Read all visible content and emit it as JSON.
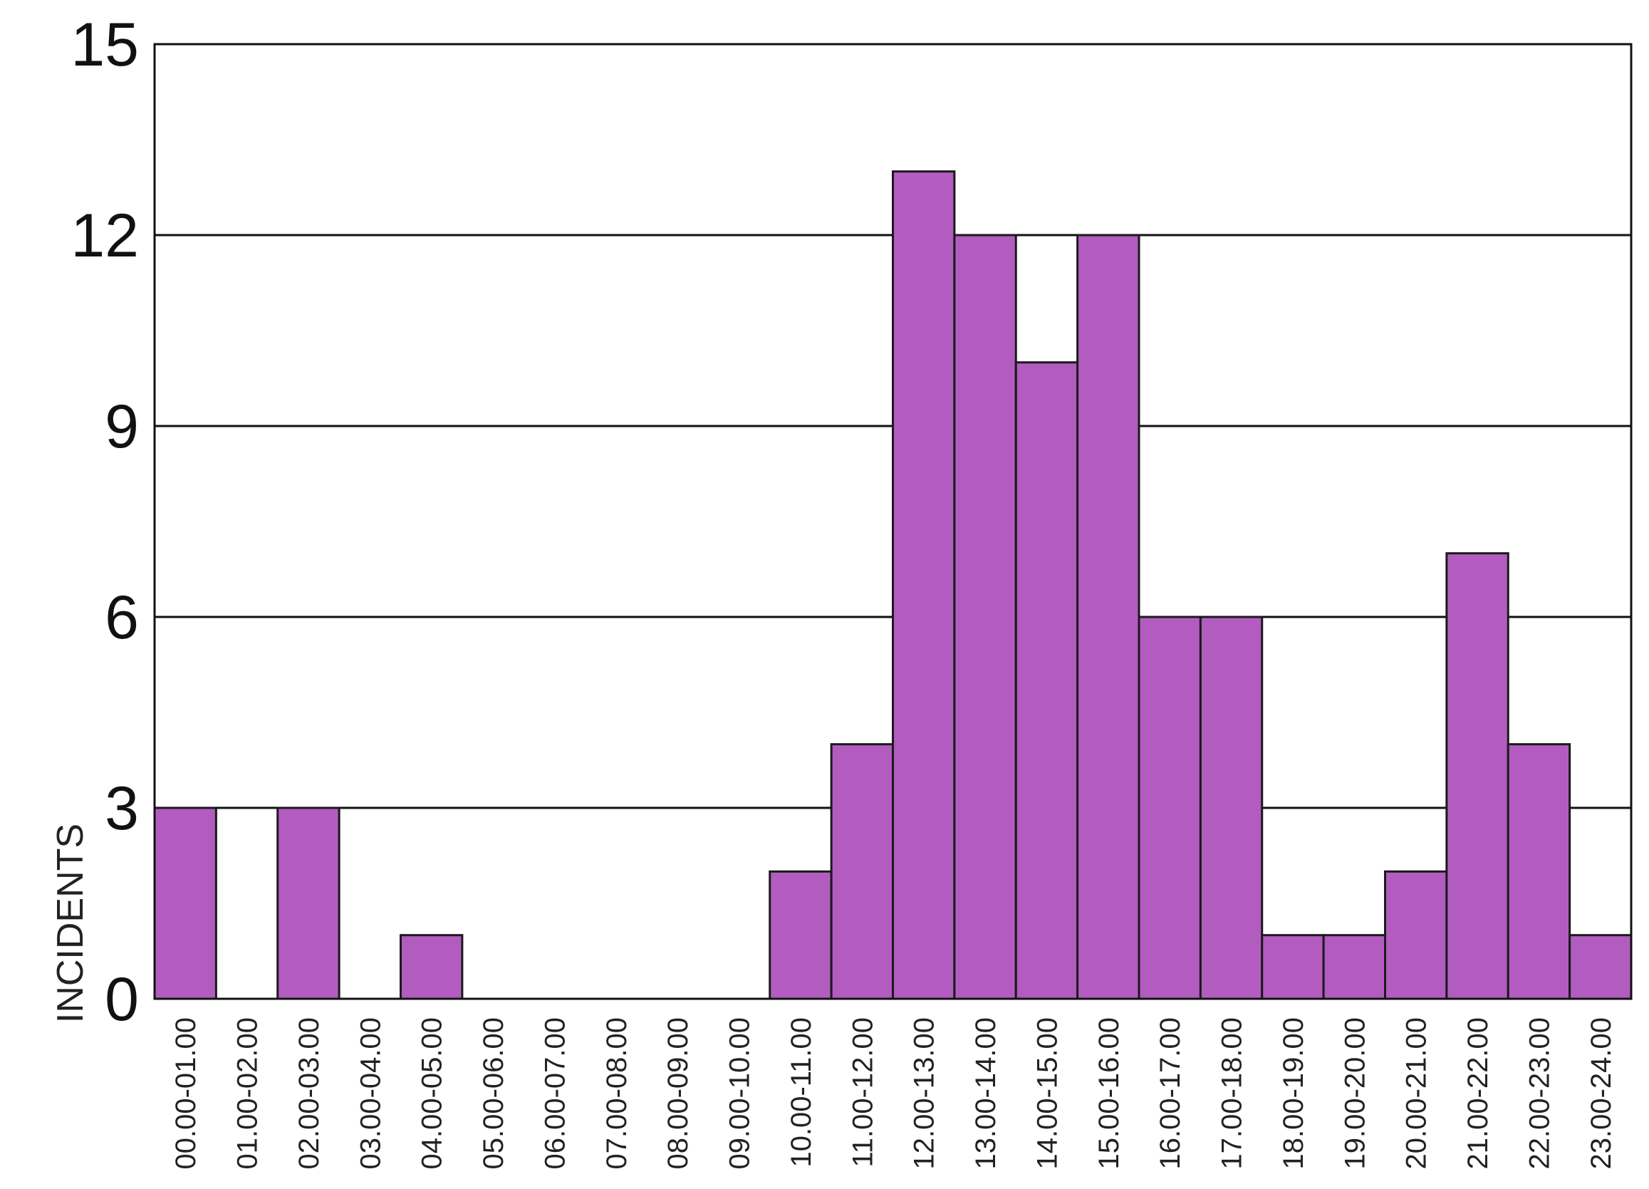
{
  "chart_data": {
    "type": "bar",
    "title": "",
    "xlabel": "",
    "ylabel": "INCIDENTS",
    "ylim": [
      0,
      15
    ],
    "yticks": [
      0,
      3,
      6,
      9,
      12,
      15
    ],
    "grid": true,
    "legend": "none",
    "bar_color": "#b25cc0",
    "categories": [
      "00.00-01.00",
      "01.00-02.00",
      "02.00-03.00",
      "03.00-04.00",
      "04.00-05.00",
      "05.00-06.00",
      "06.00-07.00",
      "07.00-08.00",
      "08.00-09.00",
      "09.00-10.00",
      "10.00-11.00",
      "11.00-12.00",
      "12.00-13.00",
      "13.00-14.00",
      "14.00-15.00",
      "15.00-16.00",
      "16.00-17.00",
      "17.00-18.00",
      "18.00-19.00",
      "19.00-20.00",
      "20.00-21.00",
      "21.00-22.00",
      "22.00-23.00",
      "23.00-24.00"
    ],
    "values": [
      3,
      0,
      3,
      0,
      1,
      0,
      0,
      0,
      0,
      0,
      2,
      4,
      13,
      12,
      10,
      12,
      6,
      6,
      1,
      1,
      2,
      7,
      4,
      1
    ]
  }
}
